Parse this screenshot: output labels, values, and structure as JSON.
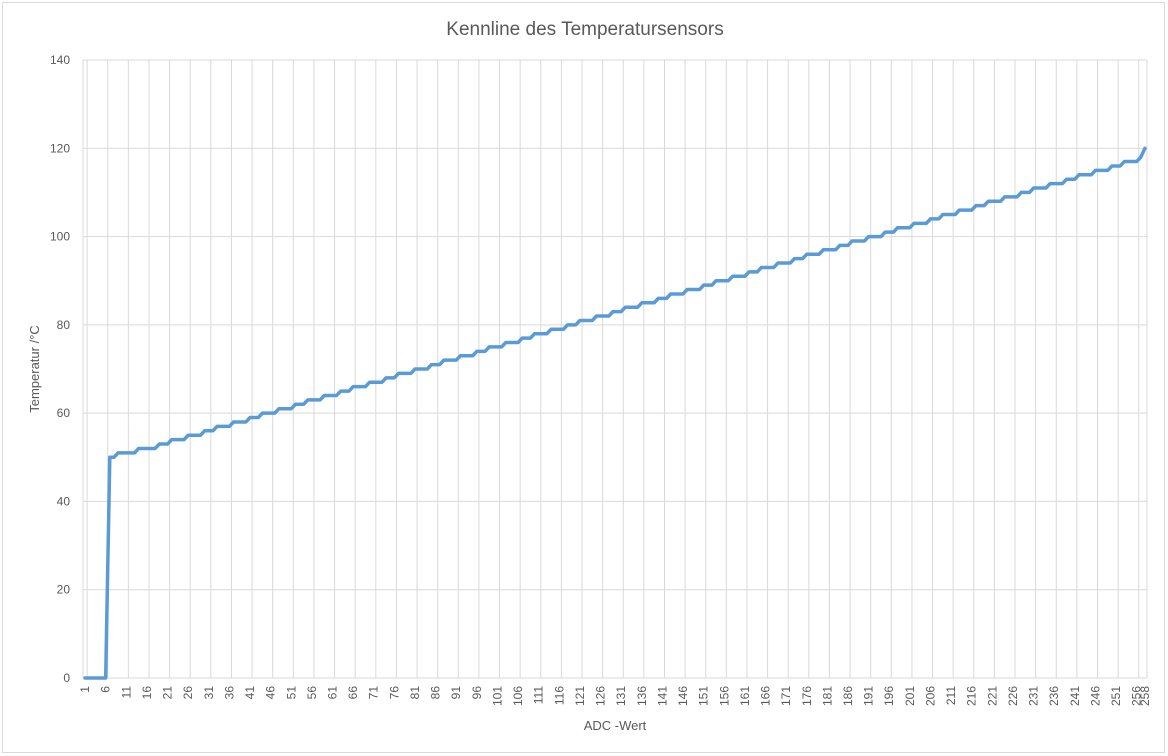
{
  "chart_data": {
    "type": "line",
    "title": "Kennline des Temperatursensors",
    "xlabel": "ADC -Wert",
    "ylabel": "Temperatur /°C",
    "ylim": [
      0,
      140
    ],
    "y_ticks": [
      0,
      20,
      40,
      60,
      80,
      100,
      120,
      140
    ],
    "x_range": [
      1,
      256
    ],
    "x_tick_step": 5,
    "grid": true,
    "legend": "none",
    "colors": {
      "line": "#5b9bd5",
      "grid": "#d9d9d9",
      "text": "#595959"
    },
    "series": [
      {
        "x_start": 1,
        "values": [
          0,
          0,
          0,
          0,
          0,
          0,
          50,
          50,
          51,
          51,
          51,
          51,
          51,
          52,
          52,
          52,
          52,
          52,
          53,
          53,
          53,
          54,
          54,
          54,
          54,
          55,
          55,
          55,
          55,
          56,
          56,
          56,
          57,
          57,
          57,
          57,
          58,
          58,
          58,
          58,
          59,
          59,
          59,
          60,
          60,
          60,
          60,
          61,
          61,
          61,
          61,
          62,
          62,
          62,
          63,
          63,
          63,
          63,
          64,
          64,
          64,
          64,
          65,
          65,
          65,
          66,
          66,
          66,
          66,
          67,
          67,
          67,
          67,
          68,
          68,
          68,
          69,
          69,
          69,
          69,
          70,
          70,
          70,
          70,
          71,
          71,
          71,
          72,
          72,
          72,
          72,
          73,
          73,
          73,
          73,
          74,
          74,
          74,
          75,
          75,
          75,
          75,
          76,
          76,
          76,
          76,
          77,
          77,
          77,
          78,
          78,
          78,
          78,
          79,
          79,
          79,
          79,
          80,
          80,
          80,
          81,
          81,
          81,
          81,
          82,
          82,
          82,
          82,
          83,
          83,
          83,
          84,
          84,
          84,
          84,
          85,
          85,
          85,
          85,
          86,
          86,
          86,
          87,
          87,
          87,
          87,
          88,
          88,
          88,
          88,
          89,
          89,
          89,
          90,
          90,
          90,
          90,
          91,
          91,
          91,
          91,
          92,
          92,
          92,
          93,
          93,
          93,
          93,
          94,
          94,
          94,
          94,
          95,
          95,
          95,
          96,
          96,
          96,
          96,
          97,
          97,
          97,
          97,
          98,
          98,
          98,
          99,
          99,
          99,
          99,
          100,
          100,
          100,
          100,
          101,
          101,
          101,
          102,
          102,
          102,
          102,
          103,
          103,
          103,
          103,
          104,
          104,
          104,
          105,
          105,
          105,
          105,
          106,
          106,
          106,
          106,
          107,
          107,
          107,
          108,
          108,
          108,
          108,
          109,
          109,
          109,
          109,
          110,
          110,
          110,
          111,
          111,
          111,
          111,
          112,
          112,
          112,
          112,
          113,
          113,
          113,
          114,
          114,
          114,
          114,
          115,
          115,
          115,
          115,
          116,
          116,
          116,
          117,
          117,
          117,
          117,
          118,
          120
        ]
      }
    ]
  }
}
